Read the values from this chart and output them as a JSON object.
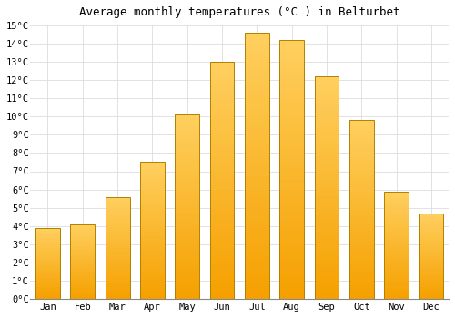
{
  "title": "Average monthly temperatures (°C ) in Belturbet",
  "months": [
    "Jan",
    "Feb",
    "Mar",
    "Apr",
    "May",
    "Jun",
    "Jul",
    "Aug",
    "Sep",
    "Oct",
    "Nov",
    "Dec"
  ],
  "values": [
    3.9,
    4.1,
    5.6,
    7.5,
    10.1,
    13.0,
    14.6,
    14.2,
    12.2,
    9.8,
    5.9,
    4.7
  ],
  "bar_color_light": "#FFD060",
  "bar_color_dark": "#F5A000",
  "bar_edge_color": "#B08000",
  "ylim": [
    0,
    15
  ],
  "yticks": [
    0,
    1,
    2,
    3,
    4,
    5,
    6,
    7,
    8,
    9,
    10,
    11,
    12,
    13,
    14,
    15
  ],
  "background_color": "#FFFFFF",
  "grid_color": "#DDDDDD",
  "title_fontsize": 9,
  "tick_fontsize": 7.5,
  "bar_width": 0.7
}
